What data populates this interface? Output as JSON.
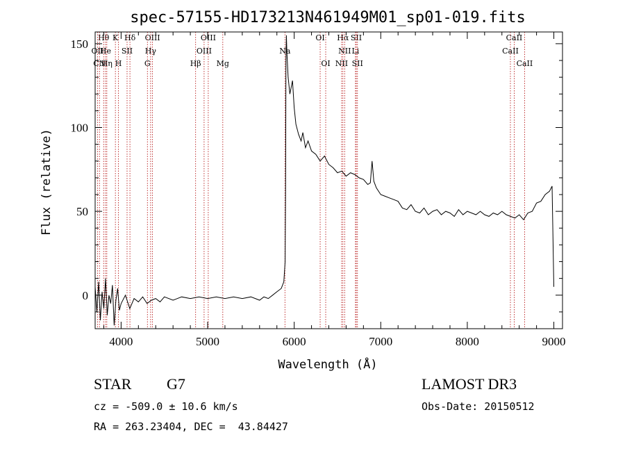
{
  "chart_data": {
    "type": "line",
    "title": "spec-57155-HD173213N461949M01_sp01-019.fits",
    "xlabel": "Wavelength (Å)",
    "ylabel": "Flux (relative)",
    "xlim": [
      3700,
      9100
    ],
    "ylim": [
      -20,
      157
    ],
    "xticks": [
      4000,
      5000,
      6000,
      7000,
      8000,
      9000
    ],
    "yticks": [
      0,
      50,
      100,
      150
    ],
    "grid": false,
    "series": [
      {
        "x": [
          3700,
          3720,
          3740,
          3760,
          3780,
          3800,
          3820,
          3840,
          3860,
          3880,
          3900,
          3920,
          3940,
          3960,
          3980,
          4000,
          4050,
          4100,
          4150,
          4200,
          4250,
          4300,
          4350,
          4400,
          4450,
          4500,
          4600,
          4700,
          4800,
          4900,
          5000,
          5100,
          5200,
          5300,
          5400,
          5500,
          5600,
          5650,
          5700,
          5750,
          5800,
          5850,
          5880,
          5895,
          5900,
          5905,
          5910,
          5915,
          5930,
          5950,
          5980,
          6000,
          6020,
          6050,
          6080,
          6100,
          6130,
          6160,
          6200,
          6250,
          6300,
          6350,
          6400,
          6450,
          6500,
          6550,
          6600,
          6650,
          6700,
          6750,
          6800,
          6850,
          6880,
          6900,
          6920,
          6950,
          7000,
          7050,
          7100,
          7150,
          7200,
          7250,
          7300,
          7350,
          7400,
          7450,
          7500,
          7550,
          7600,
          7650,
          7700,
          7750,
          7800,
          7850,
          7900,
          7950,
          8000,
          8050,
          8100,
          8150,
          8200,
          8250,
          8300,
          8350,
          8400,
          8450,
          8500,
          8550,
          8600,
          8650,
          8700,
          8750,
          8800,
          8850,
          8900,
          8950,
          8980,
          9000
        ],
        "y": [
          5,
          -10,
          8,
          -15,
          2,
          -8,
          10,
          -12,
          0,
          -5,
          6,
          -18,
          -3,
          4,
          -9,
          -5,
          0,
          -8,
          -2,
          -4,
          -1,
          -5,
          -3,
          -2,
          -4,
          -1,
          -3,
          -1,
          -2,
          -1,
          -2,
          -1,
          -2,
          -1,
          -2,
          -1,
          -3,
          -1,
          -2,
          0,
          2,
          4,
          8,
          20,
          60,
          140,
          155,
          145,
          130,
          120,
          128,
          112,
          102,
          96,
          92,
          97,
          88,
          92,
          86,
          84,
          80,
          83,
          78,
          76,
          73,
          74,
          71,
          73,
          72,
          70,
          69,
          66,
          67,
          80,
          68,
          64,
          60,
          59,
          58,
          57,
          56,
          52,
          51,
          54,
          50,
          49,
          52,
          48,
          50,
          51,
          48,
          50,
          49,
          47,
          51,
          48,
          50,
          49,
          48,
          50,
          48,
          47,
          49,
          48,
          50,
          48,
          47,
          46,
          48,
          45,
          49,
          50,
          55,
          56,
          60,
          62,
          65,
          5
        ]
      }
    ],
    "line_markers": [
      {
        "label": "Hθ",
        "x": 3798,
        "row": 1
      },
      {
        "label": "K",
        "x": 3934,
        "row": 1
      },
      {
        "label": "Hδ",
        "x": 4102,
        "row": 1
      },
      {
        "label": "OIII",
        "x": 4363,
        "row": 1
      },
      {
        "label": "OII",
        "x": 3727,
        "row": 2
      },
      {
        "label": "He",
        "x": 3820,
        "row": 2
      },
      {
        "label": "SII",
        "x": 4069,
        "row": 2
      },
      {
        "label": "Hγ",
        "x": 4341,
        "row": 2
      },
      {
        "label": "CN",
        "x": 3750,
        "row": 3
      },
      {
        "label": "Hη",
        "x": 3835,
        "row": 3
      },
      {
        "label": "H",
        "x": 3969,
        "row": 3
      },
      {
        "label": "G",
        "x": 4304,
        "row": 3
      },
      {
        "label": "OIII",
        "x": 5007,
        "row": 1
      },
      {
        "label": "OIII",
        "x": 4959,
        "row": 2
      },
      {
        "label": "Hβ",
        "x": 4861,
        "row": 3
      },
      {
        "label": "Mg",
        "x": 5175,
        "row": 3
      },
      {
        "label": "Na",
        "x": 5893,
        "row": 2
      },
      {
        "label": "OI",
        "x": 6300,
        "row": 1
      },
      {
        "label": "OI",
        "x": 6364,
        "row": 3
      },
      {
        "label": "Hα",
        "x": 6563,
        "row": 1
      },
      {
        "label": "SII",
        "x": 6717,
        "row": 1
      },
      {
        "label": "NII",
        "x": 6583,
        "row": 2
      },
      {
        "label": "Li",
        "x": 6708,
        "row": 2
      },
      {
        "label": "NII",
        "x": 6548,
        "row": 3
      },
      {
        "label": "SII",
        "x": 6731,
        "row": 3
      },
      {
        "label": "CaII",
        "x": 8542,
        "row": 1
      },
      {
        "label": "CaII",
        "x": 8498,
        "row": 2
      },
      {
        "label": "CaII",
        "x": 8662,
        "row": 3
      }
    ]
  },
  "info": {
    "object_class": "STAR",
    "subclass": "G7",
    "survey": "LAMOST DR3",
    "velocity": "cz = -509.0 ± 10.6 km/s",
    "obs_date": "Obs-Date: 20150512",
    "coordinates": "RA = 263.23404, DEC =  43.84427"
  }
}
